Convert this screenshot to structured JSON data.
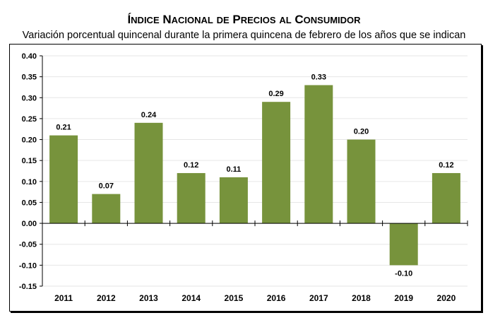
{
  "chart_data": {
    "type": "bar",
    "title": "Índice Nacional de Precios al Consumidor",
    "subtitle": "Variación porcentual quincenal durante la primera quincena de febrero de los años que se indican",
    "categories": [
      "2011",
      "2012",
      "2013",
      "2014",
      "2015",
      "2016",
      "2017",
      "2018",
      "2019",
      "2020"
    ],
    "values": [
      0.21,
      0.07,
      0.24,
      0.12,
      0.11,
      0.29,
      0.33,
      0.2,
      -0.1,
      0.12
    ],
    "data_labels": [
      "0.21",
      "0.07",
      "0.24",
      "0.12",
      "0.11",
      "0.29",
      "0.33",
      "0.20",
      "-0.10",
      "0.12"
    ],
    "yticks": [
      "0.40",
      "0.35",
      "0.30",
      "0.25",
      "0.20",
      "0.15",
      "0.10",
      "0.05",
      "0.00",
      "-0.05",
      "-0.10",
      "-0.15"
    ],
    "ylim": [
      -0.15,
      0.4
    ],
    "xlabel": "",
    "ylabel": "",
    "grid": true,
    "bar_color": "#77933c",
    "grid_color": "#e6e6e6"
  }
}
